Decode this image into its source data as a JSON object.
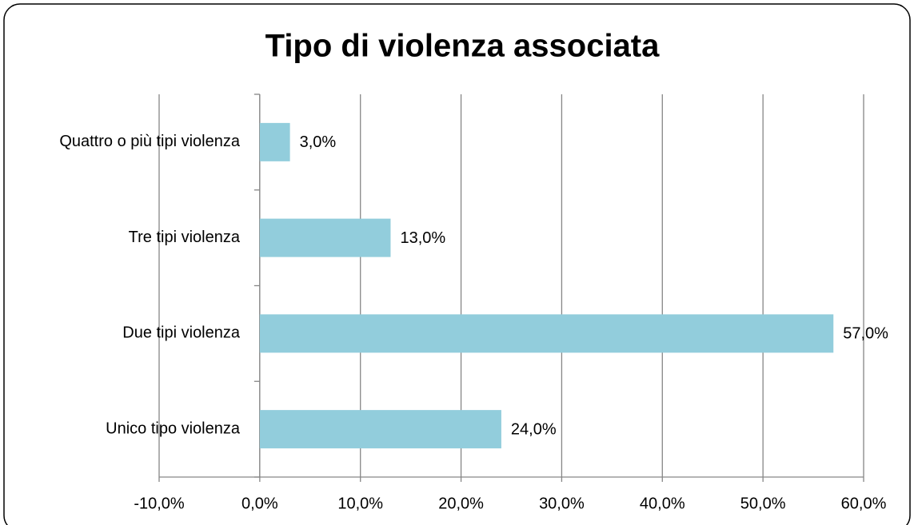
{
  "chart_data": {
    "type": "bar",
    "orientation": "horizontal",
    "title": "Tipo di violenza associata",
    "categories": [
      "Unico tipo violenza",
      "Due tipi violenza",
      "Tre tipi violenza",
      "Quattro o più tipi violenza"
    ],
    "values": [
      24,
      57,
      13,
      3
    ],
    "value_labels": [
      "24,0%",
      "57,0%",
      "13,0%",
      "3,0%"
    ],
    "color": "#92cddc",
    "xlim": [
      -10,
      60
    ],
    "xticks": [
      {
        "value": -10,
        "label": "-10,0%"
      },
      {
        "value": 0,
        "label": "0,0%"
      },
      {
        "value": 10,
        "label": "10,0%"
      },
      {
        "value": 20,
        "label": "20,0%"
      },
      {
        "value": 30,
        "label": "30,0%"
      },
      {
        "value": 40,
        "label": "40,0%"
      },
      {
        "value": 50,
        "label": "50,0%"
      },
      {
        "value": 60,
        "label": "60,0%"
      }
    ],
    "grid": true
  }
}
